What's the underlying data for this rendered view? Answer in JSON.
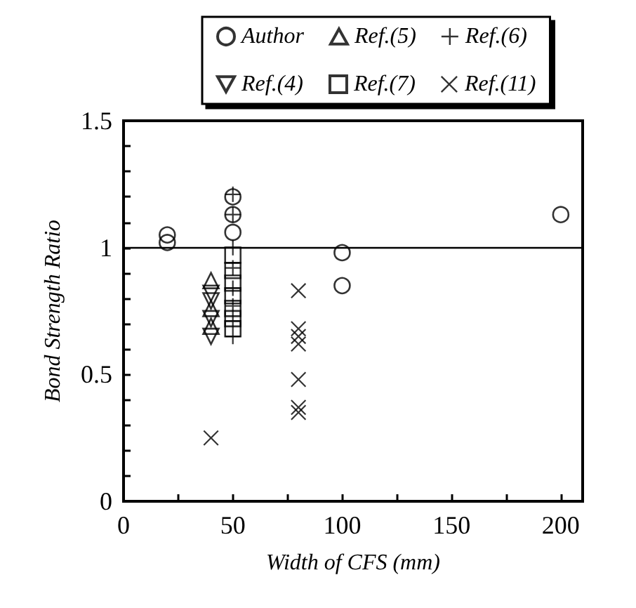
{
  "chart_data": {
    "type": "scatter",
    "xlabel": "Width of CFS (mm)",
    "ylabel": "Bond Strength Ratio",
    "xlim": [
      0,
      210
    ],
    "xticks": [
      0,
      {
        "value": 25,
        "label": null
      },
      50,
      {
        "value": 75,
        "label": null
      },
      100,
      {
        "value": 125,
        "label": null
      },
      150,
      {
        "value": 175,
        "label": null
      },
      200
    ],
    "ylim": [
      0,
      1.5
    ],
    "yticks": [
      0,
      {
        "value": 0.1,
        "label": null
      },
      {
        "value": 0.2,
        "label": null
      },
      {
        "value": 0.3,
        "label": null
      },
      {
        "value": 0.4,
        "label": null
      },
      0.5,
      {
        "value": 0.6,
        "label": null
      },
      {
        "value": 0.7,
        "label": null
      },
      {
        "value": 0.8,
        "label": null
      },
      {
        "value": 0.9,
        "label": null
      },
      1,
      {
        "value": 1.1,
        "label": null
      },
      {
        "value": 1.2,
        "label": null
      },
      {
        "value": 1.3,
        "label": null
      },
      {
        "value": 1.4,
        "label": null
      },
      1.5
    ],
    "grid": false,
    "legend": "top",
    "ref_lines": [
      {
        "axis": "y",
        "value": 1,
        "color": "#000000",
        "line_style": "solid"
      }
    ],
    "series": [
      {
        "name": "Author",
        "marker": "circle",
        "color": "#000000",
        "x": [
          20,
          20,
          50,
          50,
          50,
          100,
          100,
          200
        ],
        "values": [
          1.05,
          1.02,
          1.2,
          1.13,
          1.06,
          0.98,
          0.85,
          1.13
        ]
      },
      {
        "name": "Ref.(5)",
        "marker": "triangle",
        "color": "#000000",
        "x": [
          40,
          40,
          40
        ],
        "values": [
          0.87,
          0.76,
          0.69
        ]
      },
      {
        "name": "Ref.(6)",
        "marker": "plus",
        "color": "#000000",
        "x": [
          50,
          50,
          50,
          50,
          50,
          50,
          50,
          50
        ],
        "values": [
          1.21,
          1.13,
          1.0,
          0.92,
          0.84,
          0.77,
          0.71,
          0.65
        ]
      },
      {
        "name": "Ref.(4)",
        "marker": "triangle-down",
        "color": "#000000",
        "x": [
          40,
          40,
          40,
          40
        ],
        "values": [
          0.82,
          0.79,
          0.72,
          0.65
        ]
      },
      {
        "name": "Ref.(7)",
        "marker": "square",
        "color": "#000000",
        "x": [
          50,
          50,
          50,
          50,
          50,
          50,
          50
        ],
        "values": [
          0.97,
          0.91,
          0.86,
          0.81,
          0.76,
          0.72,
          0.68
        ]
      },
      {
        "name": "Ref.(11)",
        "marker": "x",
        "color": "#000000",
        "x": [
          40,
          80,
          80,
          80,
          80,
          80,
          80,
          80
        ],
        "values": [
          0.25,
          0.83,
          0.68,
          0.65,
          0.62,
          0.48,
          0.37,
          0.35
        ]
      }
    ]
  }
}
